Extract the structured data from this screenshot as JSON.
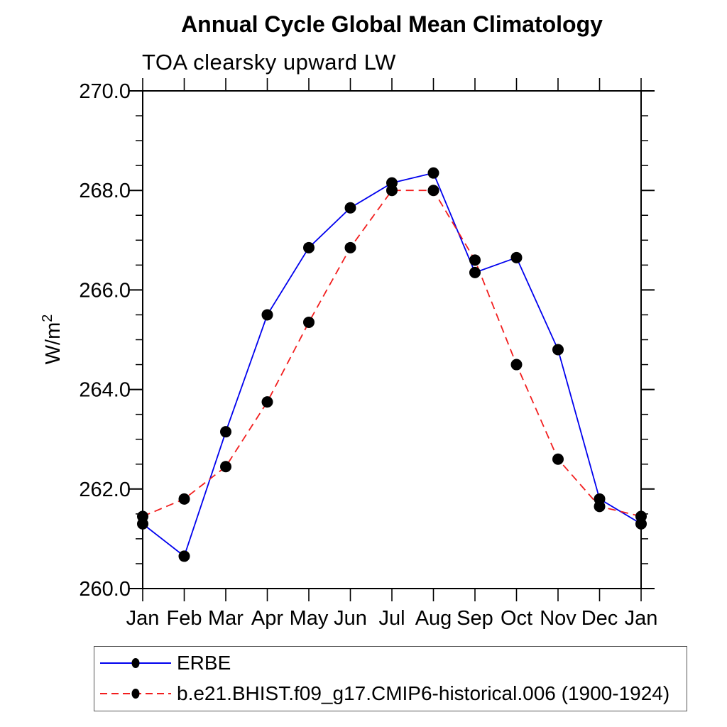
{
  "chart_data": {
    "type": "line",
    "title": "Annual Cycle Global Mean Climatology",
    "subtitle": "TOA clearsky upward LW",
    "ylabel_base": "W/m",
    "ylabel_exponent": "2",
    "categories": [
      "Jan",
      "Feb",
      "Mar",
      "Apr",
      "May",
      "Jun",
      "Jul",
      "Aug",
      "Sep",
      "Oct",
      "Nov",
      "Dec",
      "Jan"
    ],
    "ylim": [
      260.0,
      270.0
    ],
    "ytick_major_step": 2.0,
    "ytick_minor_step": 0.5,
    "ytick_labels": [
      "260.0",
      "262.0",
      "264.0",
      "266.0",
      "268.0",
      "270.0"
    ],
    "grid": false,
    "legend_position": "bottom-left-box",
    "marker_shape": "filled-circle",
    "marker_color": "#000000",
    "series": [
      {
        "name": "ERBE",
        "color": "#0000ee",
        "line_style": "solid",
        "values": [
          261.3,
          260.65,
          263.15,
          265.5,
          266.85,
          267.65,
          268.15,
          268.35,
          266.35,
          266.65,
          264.8,
          261.8,
          261.3
        ]
      },
      {
        "name": "b.e21.BHIST.f09_g17.CMIP6-historical.006 (1900-1924)",
        "color": "#f21e1e",
        "line_style": "dashed",
        "values": [
          261.45,
          261.8,
          262.45,
          263.75,
          265.35,
          266.85,
          268.0,
          268.0,
          266.6,
          264.5,
          262.6,
          261.65,
          261.45
        ]
      }
    ]
  }
}
